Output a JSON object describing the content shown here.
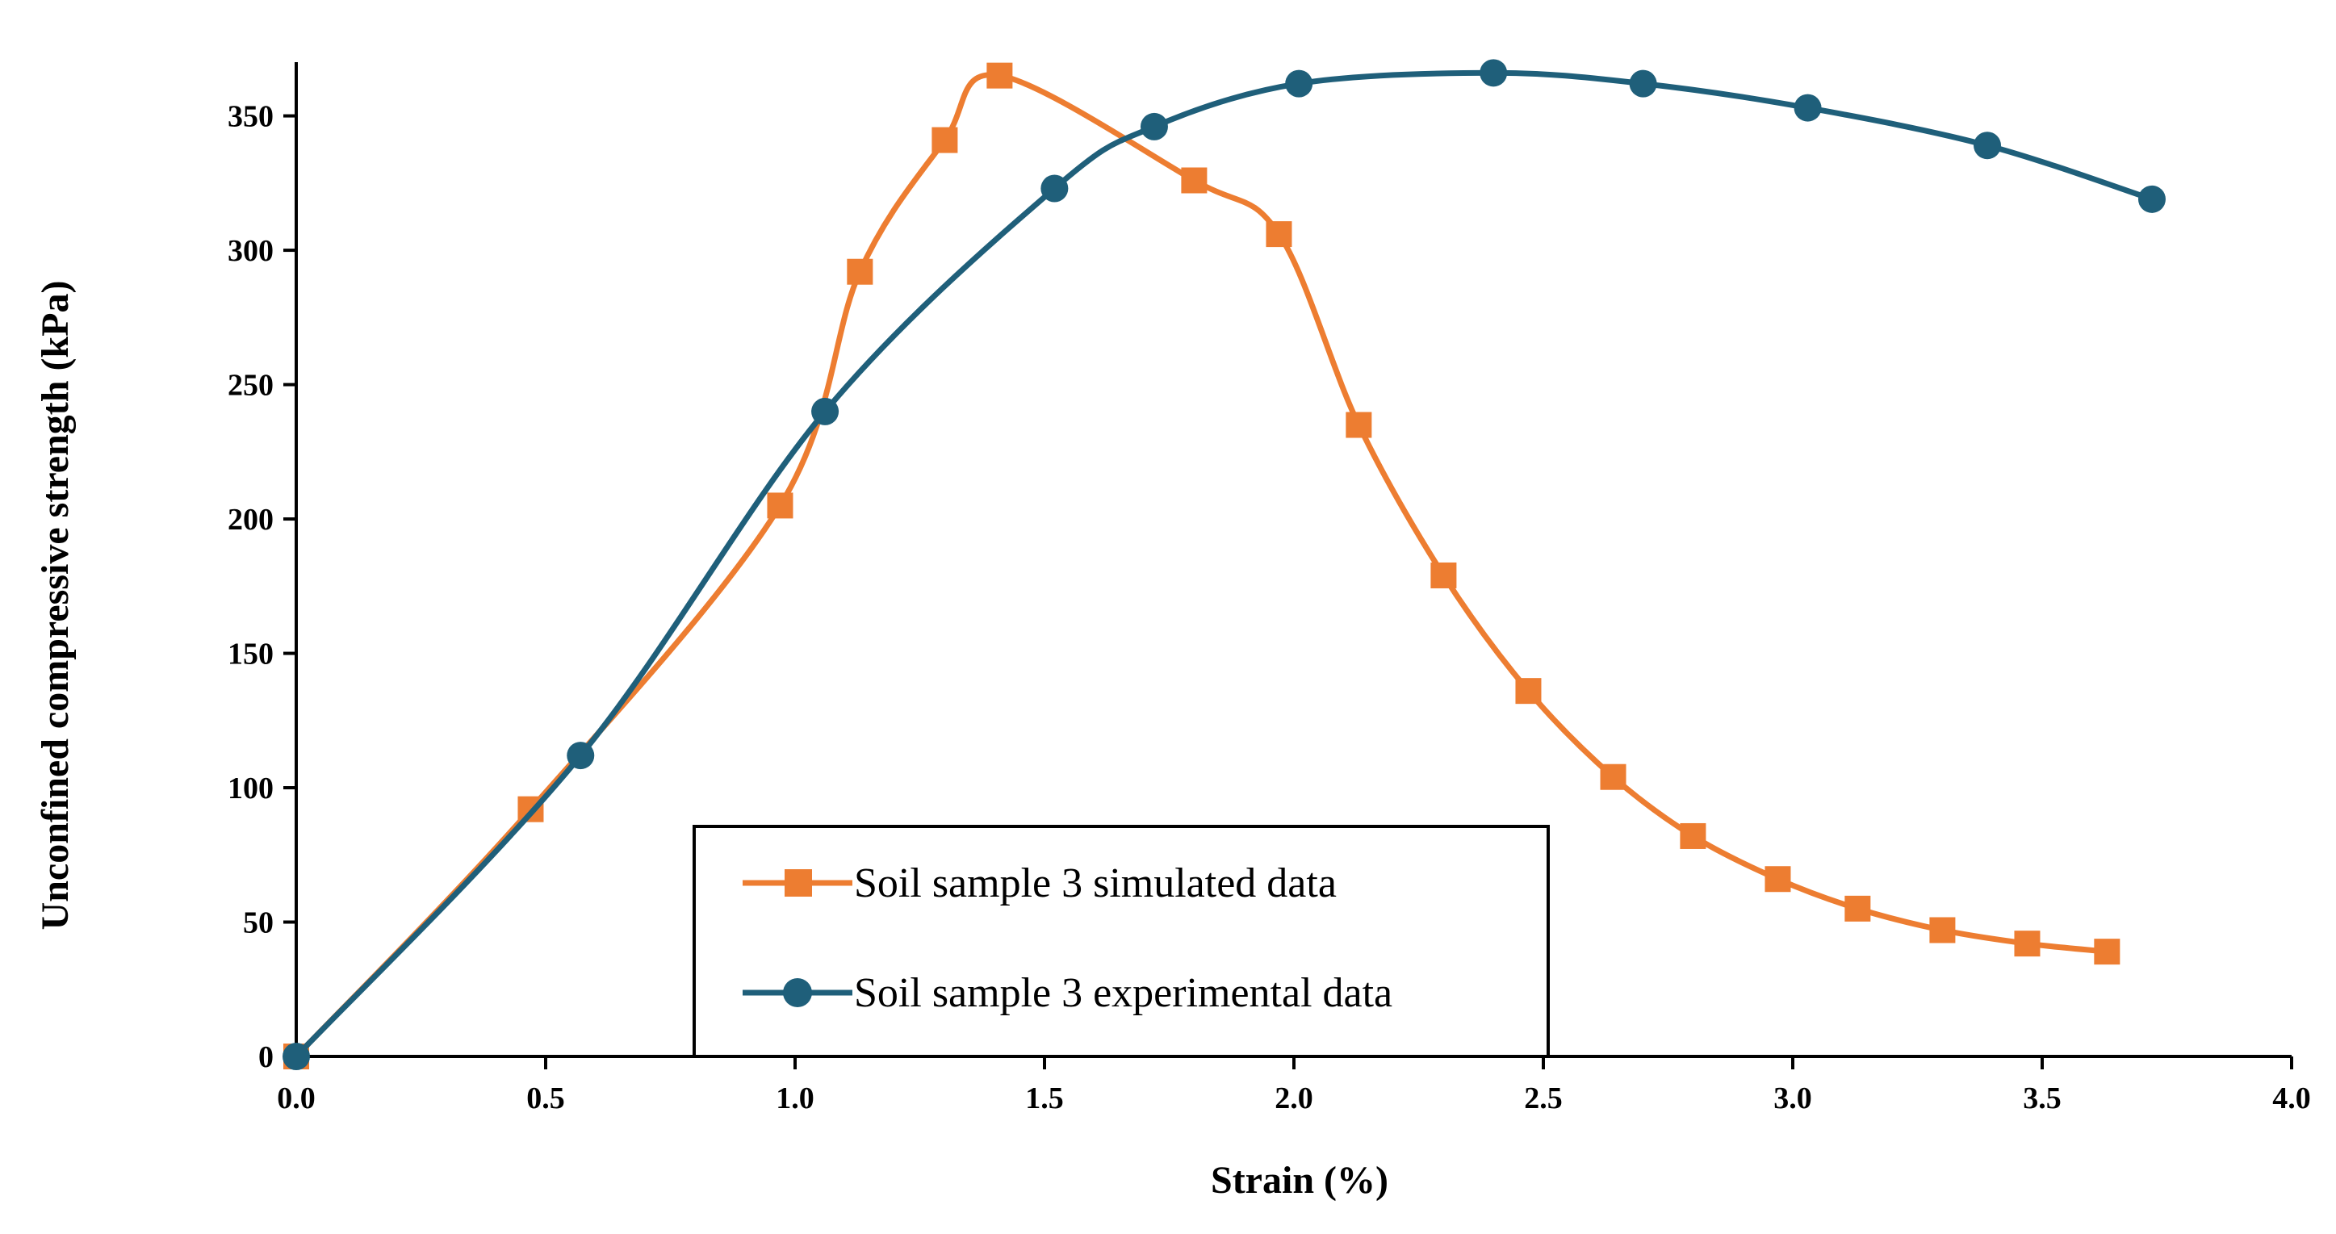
{
  "chart_data": {
    "type": "scatter",
    "xlabel": "Strain (%)",
    "ylabel": "Unconfined compressive strength (kPa)",
    "xlim": [
      0,
      4.0
    ],
    "ylim": [
      0,
      370
    ],
    "x_ticks": [
      0.0,
      0.5,
      1.0,
      1.5,
      2.0,
      2.5,
      3.0,
      3.5,
      4.0
    ],
    "x_tick_labels": [
      "0.0",
      "0.5",
      "1.0",
      "1.5",
      "2.0",
      "2.5",
      "3.0",
      "3.5",
      "4.0"
    ],
    "y_ticks": [
      0,
      50,
      100,
      150,
      200,
      250,
      300,
      350
    ],
    "y_tick_labels": [
      "0",
      "50",
      "100",
      "150",
      "200",
      "250",
      "300",
      "350"
    ],
    "grid": false,
    "legend": "bottom-center",
    "series": [
      {
        "name": "Soil sample 3 simulated data",
        "marker": "square",
        "color": "#ED7D31",
        "x": [
          0.0,
          0.47,
          0.97,
          1.13,
          1.3,
          1.41,
          1.8,
          1.97,
          2.13,
          2.3,
          2.47,
          2.64,
          2.8,
          2.97,
          3.13,
          3.3,
          3.47,
          3.63
        ],
        "y": [
          0,
          92,
          205,
          292,
          341,
          365,
          326,
          306,
          235,
          179,
          136,
          104,
          82,
          66,
          55,
          47,
          42,
          39
        ]
      },
      {
        "name": "Soil sample 3 experimental data",
        "marker": "circle",
        "color": "#1F5F7A",
        "x": [
          0.0,
          0.57,
          1.06,
          1.52,
          1.72,
          2.01,
          2.4,
          2.7,
          3.03,
          3.39,
          3.72
        ],
        "y": [
          0,
          112,
          240,
          323,
          346,
          362,
          366,
          362,
          353,
          339,
          319
        ]
      }
    ]
  }
}
